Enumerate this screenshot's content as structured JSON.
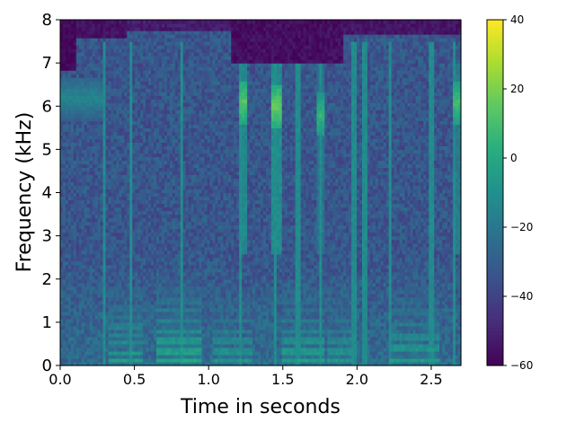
{
  "chart_data": {
    "type": "heatmap",
    "title": "",
    "xlabel": "Time in seconds",
    "ylabel": "Frequency (kHz)",
    "xlim": [
      0,
      2.7
    ],
    "ylim": [
      0,
      8
    ],
    "x_ticks": [
      "0.0",
      "0.5",
      "1.0",
      "1.5",
      "2.0",
      "2.5"
    ],
    "y_ticks": [
      "0",
      "1",
      "2",
      "3",
      "4",
      "5",
      "6",
      "7",
      "8"
    ],
    "colormap": "viridis",
    "colorbar": {
      "range": [
        -60,
        40
      ],
      "ticks": [
        "−60",
        "−40",
        "−20",
        "0",
        "20",
        "40"
      ]
    },
    "grid": false,
    "spectrogram": {
      "background_level_db": -33,
      "high_freq_dark_regions": [
        {
          "t_start": 0.0,
          "t_end": 0.1,
          "f_min_khz": 6.8,
          "level_db": -58
        },
        {
          "t_start": 0.1,
          "t_end": 0.45,
          "f_min_khz": 7.6,
          "level_db": -55
        },
        {
          "t_start": 0.45,
          "t_end": 1.15,
          "f_min_khz": 7.75,
          "level_db": -52
        },
        {
          "t_start": 1.15,
          "t_end": 1.9,
          "f_min_khz": 7.0,
          "level_db": -56
        },
        {
          "t_start": 1.9,
          "t_end": 2.7,
          "f_min_khz": 7.65,
          "level_db": -54
        }
      ],
      "voiced_segments": [
        {
          "t_start": 0.32,
          "t_end": 0.56,
          "f0_khz": 0.14,
          "level_db": 8
        },
        {
          "t_start": 0.65,
          "t_end": 0.96,
          "f0_khz": 0.13,
          "level_db": 12
        },
        {
          "t_start": 1.02,
          "t_end": 1.3,
          "f0_khz": 0.13,
          "level_db": 6
        },
        {
          "t_start": 1.5,
          "t_end": 1.78,
          "f0_khz": 0.13,
          "level_db": 9
        },
        {
          "t_start": 1.8,
          "t_end": 1.98,
          "f0_khz": 0.13,
          "level_db": 6
        },
        {
          "t_start": 2.22,
          "t_end": 2.55,
          "f0_khz": 0.12,
          "level_db": 8
        }
      ],
      "fricative_bands": [
        {
          "t_start": 1.2,
          "t_end": 1.26,
          "f_center_khz": 6.1,
          "level_db": 14
        },
        {
          "t_start": 1.43,
          "t_end": 1.5,
          "f_center_khz": 6.0,
          "level_db": 16
        },
        {
          "t_start": 1.73,
          "t_end": 1.78,
          "f_center_khz": 5.8,
          "level_db": 6
        },
        {
          "t_start": 2.65,
          "t_end": 2.7,
          "f_center_khz": 6.1,
          "level_db": 10
        },
        {
          "t_start": 0.0,
          "t_end": 0.3,
          "f_center_khz": 6.2,
          "level_db": -14
        }
      ],
      "bursts": [
        0.3,
        0.48,
        0.82,
        1.22,
        1.45,
        1.6,
        1.76,
        1.98,
        2.05,
        2.22,
        2.5,
        2.66
      ]
    }
  }
}
